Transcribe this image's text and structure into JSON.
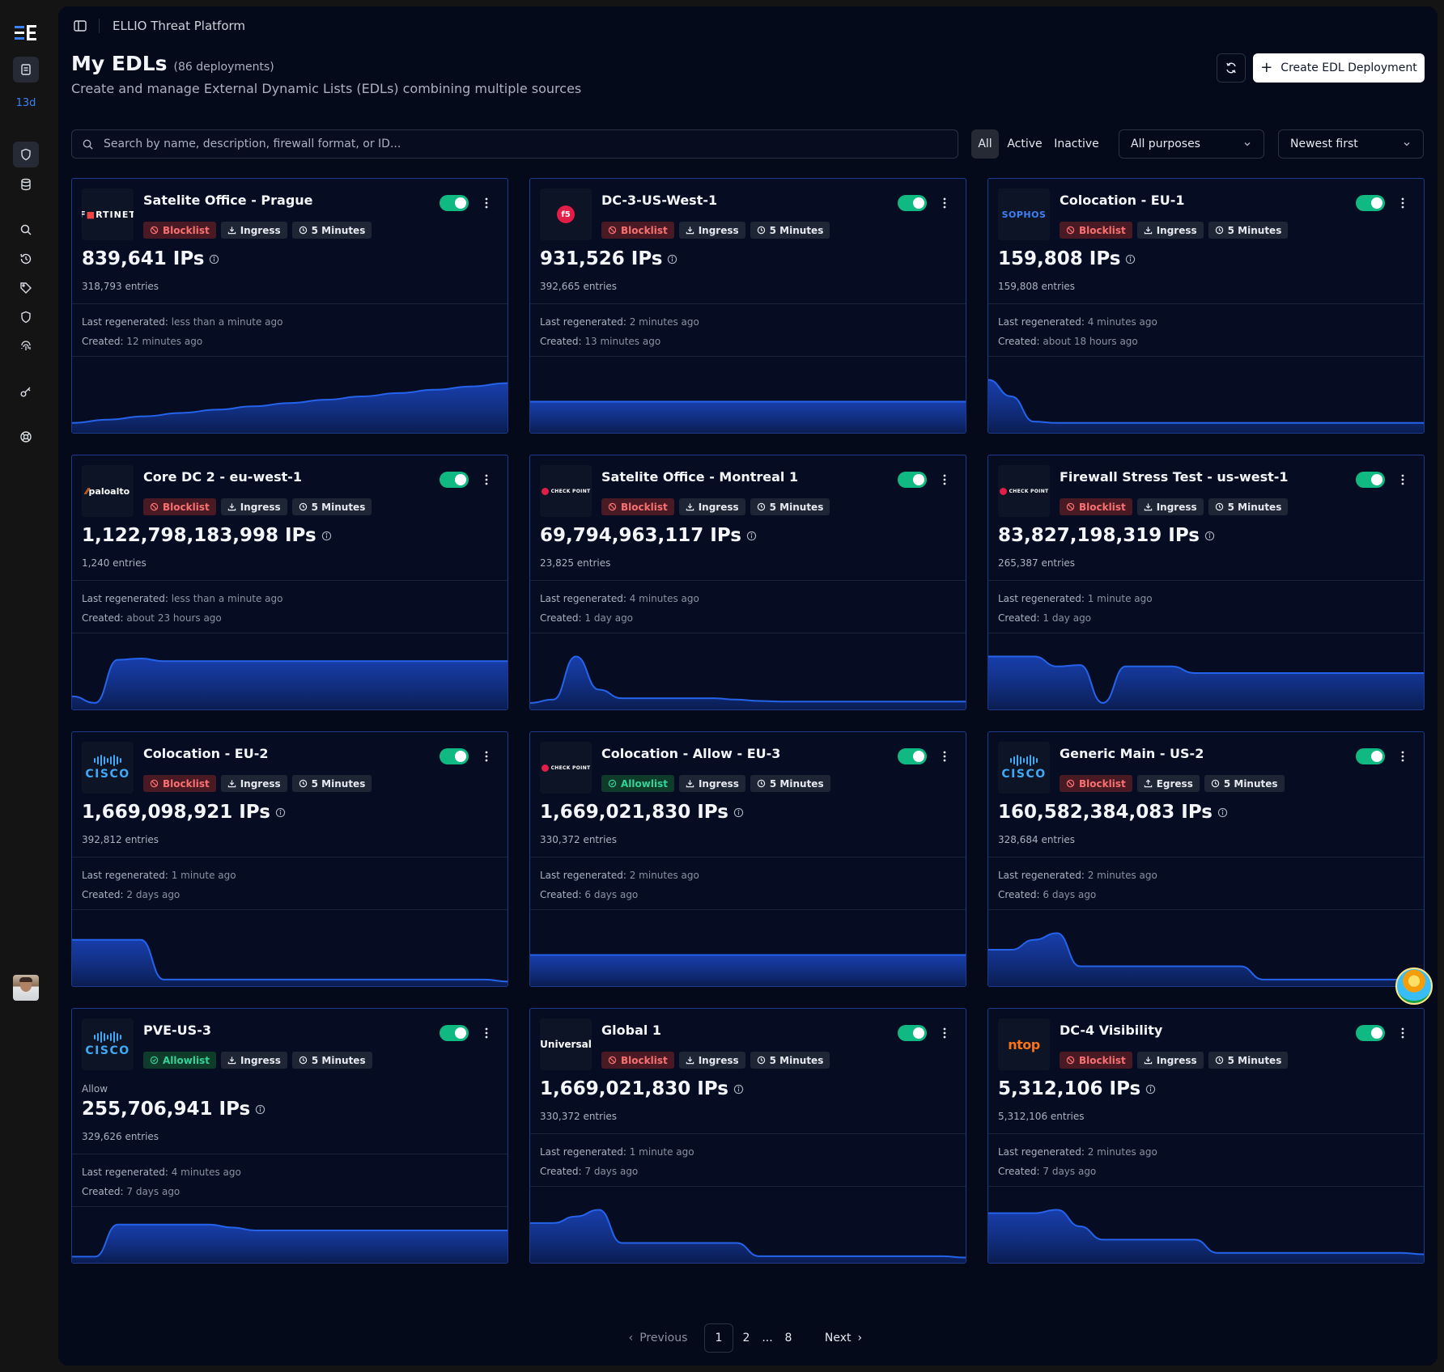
{
  "sidebar": {
    "badge": "13d",
    "icons": [
      "menu-logo-icon",
      "reports-icon",
      "shield-icon",
      "database-icon",
      "search-icon",
      "history-icon",
      "tag-icon",
      "shield-outline-icon",
      "fingerprint-icon",
      "key-icon",
      "support-icon"
    ]
  },
  "header": {
    "breadcrumb": "ELLIO Threat Platform",
    "title": "My EDLs",
    "count": "(86 deployments)",
    "subtitle": "Create and manage External Dynamic Lists (EDLs) combining multiple sources",
    "create_label": "Create EDL Deployment"
  },
  "filters": {
    "search_placeholder": "Search by name, description, firewall format, or ID...",
    "status": [
      "All",
      "Active",
      "Inactive"
    ],
    "purpose": "All purposes",
    "sort": "Newest first"
  },
  "labels": {
    "last_regen": "Last regenerated:",
    "created": "Created:"
  },
  "cards": [
    {
      "name": "Satelite Office - Prague",
      "vendor": "fortinet",
      "type": "Blocklist",
      "direction": "Ingress",
      "interval": "5 Minutes",
      "ips": "839,641 IPs",
      "entries": "318,793 entries",
      "regen": "less than a minute ago",
      "created": "12 minutes ago",
      "spark": [
        0.1,
        0.15,
        0.2,
        0.25,
        0.3,
        0.35,
        0.4,
        0.45,
        0.5,
        0.55,
        0.6,
        0.65,
        0.7
      ]
    },
    {
      "name": "DC-3-US-West-1",
      "vendor": "f5",
      "type": "Blocklist",
      "direction": "Ingress",
      "interval": "5 Minutes",
      "ips": "931,526 IPs",
      "entries": "392,665 entries",
      "regen": "2 minutes ago",
      "created": "13 minutes ago",
      "spark": [
        0.42,
        0.42,
        0.42,
        0.42,
        0.42,
        0.42,
        0.42,
        0.42,
        0.42,
        0.42
      ]
    },
    {
      "name": "Colocation - EU-1",
      "vendor": "sophos",
      "type": "Blocklist",
      "direction": "Ingress",
      "interval": "5 Minutes",
      "ips": "159,808 IPs",
      "entries": "159,808 entries",
      "regen": "4 minutes ago",
      "created": "about 18 hours ago",
      "spark": [
        0.75,
        0.5,
        0.12,
        0.1,
        0.1,
        0.1,
        0.1,
        0.1,
        0.1,
        0.1,
        0.1,
        0.1,
        0.1,
        0.1,
        0.1,
        0.1,
        0.1,
        0.1,
        0.1,
        0.1
      ]
    },
    {
      "name": "Core DC 2 - eu-west-1",
      "vendor": "paloalto",
      "type": "Blocklist",
      "direction": "Ingress",
      "interval": "5 Minutes",
      "ips": "1,122,798,183,998 IPs",
      "entries": "1,240 entries",
      "regen": "less than a minute ago",
      "created": "about 23 hours ago",
      "spark": [
        0.15,
        0.05,
        0.7,
        0.72,
        0.68,
        0.68,
        0.68,
        0.68,
        0.68,
        0.68,
        0.68,
        0.68,
        0.68,
        0.68,
        0.68,
        0.68,
        0.68,
        0.68,
        0.68,
        0.68
      ]
    },
    {
      "name": "Satelite Office - Montreal 1",
      "vendor": "checkpoint",
      "type": "Blocklist",
      "direction": "Ingress",
      "interval": "5 Minutes",
      "ips": "69,794,963,117 IPs",
      "entries": "23,825 entries",
      "regen": "4 minutes ago",
      "created": "1 day ago",
      "spark": [
        0.05,
        0.1,
        0.75,
        0.25,
        0.12,
        0.12,
        0.12,
        0.12,
        0.12,
        0.1,
        0.08,
        0.07,
        0.07,
        0.07,
        0.07,
        0.07,
        0.07,
        0.07,
        0.07,
        0.07
      ]
    },
    {
      "name": "Firewall Stress Test - us-west-1",
      "vendor": "checkpoint",
      "type": "Blocklist",
      "direction": "Ingress",
      "interval": "5 Minutes",
      "ips": "83,827,198,319 IPs",
      "entries": "265,387 entries",
      "regen": "1 minute ago",
      "created": "1 day ago",
      "spark": [
        0.75,
        0.75,
        0.75,
        0.6,
        0.62,
        0.05,
        0.6,
        0.6,
        0.6,
        0.5,
        0.5,
        0.5,
        0.5,
        0.5,
        0.5,
        0.5,
        0.5,
        0.5,
        0.5,
        0.5
      ]
    },
    {
      "name": "Colocation - EU-2",
      "vendor": "cisco",
      "type": "Blocklist",
      "direction": "Ingress",
      "interval": "5 Minutes",
      "ips": "1,669,098,921 IPs",
      "entries": "392,812 entries",
      "regen": "1 minute ago",
      "created": "2 days ago",
      "spark": [
        0.65,
        0.65,
        0.65,
        0.65,
        0.05,
        0.05,
        0.05,
        0.05,
        0.05,
        0.05,
        0.05,
        0.05,
        0.05,
        0.05,
        0.05,
        0.05,
        0.05,
        0.05,
        0.05,
        0.02
      ]
    },
    {
      "name": "Colocation - Allow - EU-3",
      "vendor": "checkpoint",
      "type": "Allowlist",
      "direction": "Ingress",
      "interval": "5 Minutes",
      "ips": "1,669,021,830 IPs",
      "entries": "330,372 entries",
      "regen": "2 minutes ago",
      "created": "6 days ago",
      "spark": [
        0.42,
        0.42,
        0.42,
        0.42,
        0.42,
        0.42,
        0.42,
        0.42,
        0.42,
        0.42
      ]
    },
    {
      "name": "Generic Main - US-2",
      "vendor": "cisco",
      "type": "Blocklist",
      "direction": "Egress",
      "interval": "5 Minutes",
      "ips": "160,582,384,083 IPs",
      "entries": "328,684 entries",
      "regen": "2 minutes ago",
      "created": "6 days ago",
      "spark": [
        0.5,
        0.5,
        0.65,
        0.75,
        0.25,
        0.25,
        0.25,
        0.25,
        0.25,
        0.25,
        0.25,
        0.25,
        0.05,
        0.05,
        0.05,
        0.05,
        0.05,
        0.05,
        0.05,
        0.05
      ]
    },
    {
      "name": "PVE-US-3",
      "vendor": "cisco",
      "type": "Allowlist",
      "direction": "Ingress",
      "interval": "5 Minutes",
      "note": "Allow",
      "ips": "255,706,941 IPs",
      "entries": "329,626 entries",
      "regen": "4 minutes ago",
      "created": "7 days ago",
      "spark": [
        0.05,
        0.05,
        0.6,
        0.6,
        0.6,
        0.6,
        0.6,
        0.55,
        0.5,
        0.5,
        0.5,
        0.5,
        0.5,
        0.5,
        0.5,
        0.5,
        0.5,
        0.5,
        0.5,
        0.5
      ]
    },
    {
      "name": "Global 1",
      "vendor": "universal",
      "type": "Blocklist",
      "direction": "Ingress",
      "interval": "5 Minutes",
      "ips": "1,669,021,830 IPs",
      "entries": "330,372 entries",
      "regen": "1 minute ago",
      "created": "7 days ago",
      "spark": [
        0.55,
        0.55,
        0.65,
        0.75,
        0.25,
        0.25,
        0.25,
        0.25,
        0.25,
        0.25,
        0.05,
        0.05,
        0.05,
        0.05,
        0.05,
        0.05,
        0.05,
        0.05,
        0.05,
        0.03
      ]
    },
    {
      "name": "DC-4 Visibility",
      "vendor": "ntop",
      "type": "Blocklist",
      "direction": "Ingress",
      "interval": "5 Minutes",
      "ips": "5,312,106 IPs",
      "entries": "5,312,106 entries",
      "regen": "2 minutes ago",
      "created": "7 days ago",
      "spark": [
        0.7,
        0.7,
        0.7,
        0.75,
        0.5,
        0.3,
        0.3,
        0.3,
        0.3,
        0.3,
        0.1,
        0.1,
        0.1,
        0.1,
        0.1,
        0.1,
        0.1,
        0.1,
        0.1,
        0.08
      ]
    }
  ],
  "vendors": {
    "fortinet": {
      "a": "F",
      "r": "■",
      "b": "RTINET"
    },
    "f5": "f5",
    "sophos": "SOPHOS",
    "paloalto": {
      "s": "⁄⁄",
      "t": "paloalto"
    },
    "checkpoint": "CHECK POINT",
    "cisco": "CISCO",
    "universal": "Universal",
    "ntop": "ntop"
  },
  "pagination": {
    "previous": "Previous",
    "pages": [
      "1",
      "2",
      "...",
      "8"
    ],
    "current": "1",
    "next": "Next"
  },
  "colors": {
    "accent": "#3b82f6",
    "toggle_on": "#10b981",
    "blocklist": "#f87171",
    "allowlist": "#34d399",
    "background": "#050a1a"
  }
}
